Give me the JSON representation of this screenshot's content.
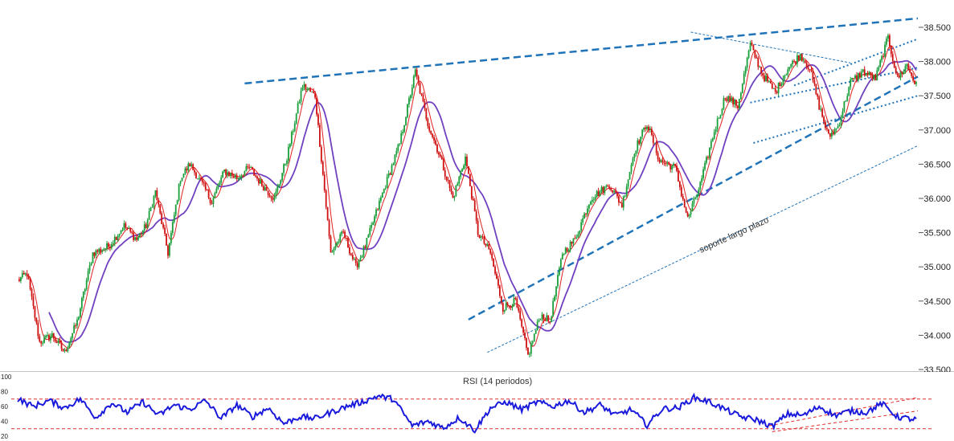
{
  "chart_data": [
    {
      "type": "candlestick",
      "title": "",
      "xlabel": "",
      "ylabel": "",
      "ylim": [
        33.5,
        38.7
      ],
      "y_ticks": [
        "38.500",
        "38.000",
        "37.500",
        "37.000",
        "36.500",
        "36.000",
        "35.500",
        "35.000",
        "34.500",
        "34.000",
        "33.500"
      ],
      "y_tick_values": [
        38.5,
        38.0,
        37.5,
        37.0,
        36.5,
        36.0,
        35.5,
        35.0,
        34.5,
        34.0,
        33.5
      ],
      "series_colors": {
        "up": "#1a9e3a",
        "down": "#d01010",
        "ma_fast": "#e02020",
        "ma_slow": "#7040c0",
        "trendline": "#1f73b8"
      },
      "price_path": [
        [
          0,
          34.8
        ],
        [
          6,
          34.9
        ],
        [
          14,
          33.9
        ],
        [
          22,
          34.0
        ],
        [
          30,
          33.75
        ],
        [
          38,
          34.2
        ],
        [
          48,
          35.2
        ],
        [
          58,
          35.3
        ],
        [
          68,
          35.6
        ],
        [
          76,
          35.4
        ],
        [
          82,
          35.6
        ],
        [
          88,
          36.1
        ],
        [
          96,
          35.2
        ],
        [
          104,
          36.3
        ],
        [
          110,
          36.5
        ],
        [
          118,
          36.2
        ],
        [
          124,
          35.95
        ],
        [
          132,
          36.4
        ],
        [
          140,
          36.3
        ],
        [
          148,
          36.45
        ],
        [
          156,
          36.2
        ],
        [
          164,
          36.0
        ],
        [
          172,
          36.6
        ],
        [
          182,
          37.65
        ],
        [
          190,
          37.5
        ],
        [
          200,
          35.2
        ],
        [
          208,
          35.5
        ],
        [
          216,
          35.0
        ],
        [
          222,
          35.3
        ],
        [
          232,
          36.0
        ],
        [
          244,
          36.8
        ],
        [
          254,
          37.85
        ],
        [
          262,
          37.1
        ],
        [
          270,
          36.6
        ],
        [
          278,
          36.0
        ],
        [
          286,
          36.6
        ],
        [
          294,
          35.5
        ],
        [
          302,
          35.2
        ],
        [
          310,
          34.4
        ],
        [
          318,
          34.5
        ],
        [
          326,
          33.7
        ],
        [
          334,
          34.3
        ],
        [
          340,
          34.2
        ],
        [
          348,
          35.2
        ],
        [
          356,
          35.4
        ],
        [
          366,
          36.0
        ],
        [
          378,
          36.2
        ],
        [
          386,
          35.9
        ],
        [
          394,
          36.7
        ],
        [
          402,
          37.1
        ],
        [
          410,
          36.55
        ],
        [
          420,
          36.45
        ],
        [
          428,
          35.7
        ],
        [
          436,
          36.2
        ],
        [
          444,
          36.9
        ],
        [
          452,
          37.5
        ],
        [
          460,
          37.35
        ],
        [
          468,
          38.25
        ],
        [
          476,
          37.8
        ],
        [
          484,
          37.55
        ],
        [
          492,
          37.9
        ],
        [
          500,
          38.1
        ],
        [
          506,
          37.9
        ],
        [
          512,
          37.35
        ],
        [
          518,
          36.9
        ],
        [
          524,
          37.05
        ],
        [
          532,
          37.7
        ],
        [
          540,
          37.85
        ],
        [
          548,
          37.75
        ],
        [
          556,
          38.35
        ],
        [
          562,
          37.75
        ],
        [
          568,
          37.95
        ],
        [
          574,
          37.65
        ]
      ]
    },
    {
      "type": "line",
      "title": "RSI (14 periodos)",
      "xlabel": "",
      "ylabel": "",
      "ylim": [
        20,
        100
      ],
      "y_ticks": [
        "100",
        "80",
        "60",
        "40",
        "20"
      ],
      "y_tick_values": [
        100,
        80,
        60,
        40,
        20
      ],
      "reference_levels": [
        70,
        30
      ],
      "series_colors": {
        "rsi": "#1a1adc",
        "levels": "#e03030"
      },
      "rsi_path": [
        [
          0,
          70
        ],
        [
          10,
          60
        ],
        [
          20,
          68
        ],
        [
          30,
          58
        ],
        [
          40,
          70
        ],
        [
          50,
          45
        ],
        [
          60,
          65
        ],
        [
          70,
          52
        ],
        [
          80,
          66
        ],
        [
          90,
          48
        ],
        [
          100,
          62
        ],
        [
          110,
          56
        ],
        [
          120,
          68
        ],
        [
          130,
          44
        ],
        [
          140,
          62
        ],
        [
          150,
          46
        ],
        [
          160,
          58
        ],
        [
          170,
          37
        ],
        [
          180,
          46
        ],
        [
          190,
          44
        ],
        [
          200,
          52
        ],
        [
          210,
          60
        ],
        [
          220,
          66
        ],
        [
          230,
          74
        ],
        [
          240,
          70
        ],
        [
          246,
          52
        ],
        [
          252,
          34
        ],
        [
          262,
          40
        ],
        [
          272,
          31
        ],
        [
          282,
          45
        ],
        [
          292,
          28
        ],
        [
          302,
          58
        ],
        [
          312,
          66
        ],
        [
          322,
          56
        ],
        [
          332,
          66
        ],
        [
          342,
          60
        ],
        [
          352,
          68
        ],
        [
          362,
          52
        ],
        [
          372,
          62
        ],
        [
          382,
          48
        ],
        [
          392,
          56
        ],
        [
          402,
          35
        ],
        [
          412,
          57
        ],
        [
          422,
          58
        ],
        [
          432,
          72
        ],
        [
          442,
          66
        ],
        [
          452,
          56
        ],
        [
          462,
          46
        ],
        [
          472,
          42
        ],
        [
          482,
          33
        ],
        [
          492,
          50
        ],
        [
          502,
          48
        ],
        [
          512,
          60
        ],
        [
          522,
          48
        ],
        [
          532,
          54
        ],
        [
          542,
          52
        ],
        [
          552,
          64
        ],
        [
          562,
          46
        ],
        [
          574,
          42
        ]
      ]
    }
  ],
  "annotations": {
    "support_label": "soporte largo plazo",
    "rsi_label": "RSI (14 periodos)"
  }
}
